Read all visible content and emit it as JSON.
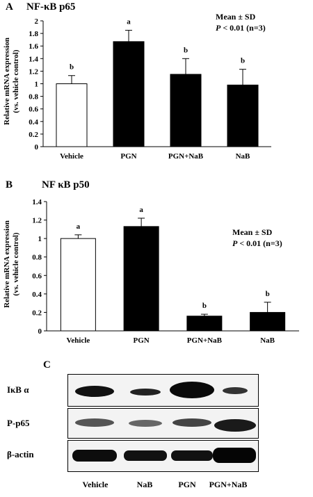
{
  "panels": {
    "a": {
      "letter": "A",
      "title": "NF-κB p65",
      "stat_line1": "Mean ± SD",
      "stat_p": "P",
      "stat_rest": " < 0.01 (n=3)",
      "ylabel_line1": "Relative mRNA expression",
      "ylabel_line2": "(vs. vehicle control)"
    },
    "b": {
      "letter": "B",
      "title": "NF κB p50",
      "stat_line1": "Mean ± SD",
      "stat_p": "P",
      "stat_rest": " < 0.01 (n=3)",
      "ylabel_line1": "Relative mRNA expression",
      "ylabel_line2": "(vs. vehicle control)"
    },
    "c": {
      "letter": "C",
      "rows": [
        "IκB α",
        "P-p65",
        "β-actin"
      ],
      "lanes": [
        "Vehicle",
        "NaB",
        "PGN",
        "PGN+NaB"
      ]
    }
  },
  "chart_data": [
    {
      "type": "bar",
      "title": "NF-κB p65",
      "categories": [
        "Vehicle",
        "PGN",
        "PGN+NaB",
        "NaB"
      ],
      "values": [
        1.0,
        1.67,
        1.15,
        0.98
      ],
      "errors": [
        0.13,
        0.18,
        0.25,
        0.25
      ],
      "letters": [
        "b",
        "a",
        "b",
        "b"
      ],
      "fills": [
        "#ffffff",
        "#000000",
        "#000000",
        "#000000"
      ],
      "ylim": [
        0,
        2
      ],
      "yticks": [
        "0",
        "0.2",
        "0.4",
        "0.6",
        "0.8",
        "1",
        "1.2",
        "1.4",
        "1.6",
        "1.8",
        "2"
      ],
      "ylabel": "Relative mRNA expression (vs. vehicle control)",
      "xlabel": ""
    },
    {
      "type": "bar",
      "title": "NF κB p50",
      "categories": [
        "Vehicle",
        "PGN",
        "PGN+NaB",
        "NaB"
      ],
      "values": [
        1.0,
        1.13,
        0.16,
        0.2
      ],
      "errors": [
        0.04,
        0.09,
        0.02,
        0.11
      ],
      "letters": [
        "a",
        "a",
        "b",
        "b"
      ],
      "fills": [
        "#ffffff",
        "#000000",
        "#000000",
        "#000000"
      ],
      "ylim": [
        0,
        1.4
      ],
      "yticks": [
        "0",
        "0.2",
        "0.4",
        "0.6",
        "0.8",
        "1",
        "1.2",
        "1.4"
      ],
      "ylabel": "Relative mRNA expression (vs. vehicle control)",
      "xlabel": ""
    }
  ]
}
